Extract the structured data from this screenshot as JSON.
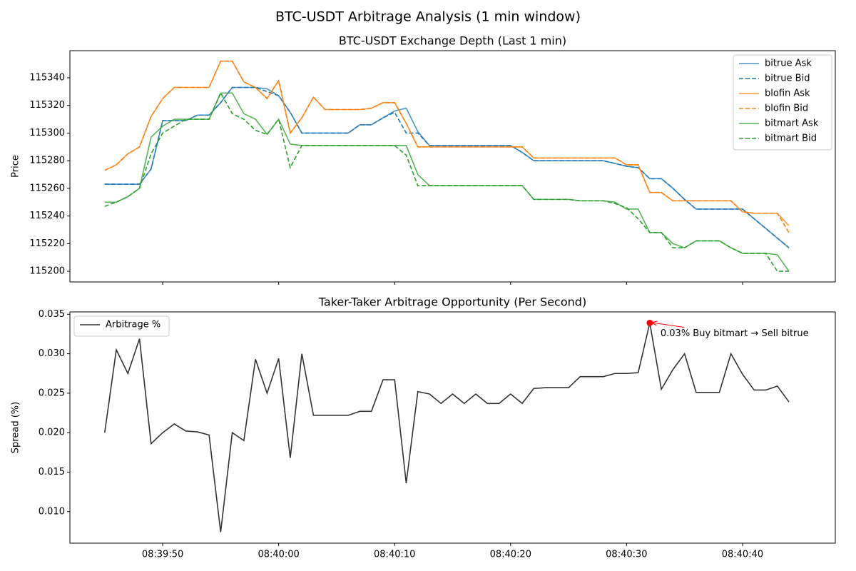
{
  "title": "BTC-USDT Arbitrage Analysis (1 min window)",
  "chart_data": [
    {
      "type": "line",
      "title": "BTC-USDT Exchange Depth (Last 1 min)",
      "y_label": "Price",
      "x": [
        "08:39:45",
        "08:39:46",
        "08:39:47",
        "08:39:48",
        "08:39:49",
        "08:39:50",
        "08:39:51",
        "08:39:52",
        "08:39:53",
        "08:39:54",
        "08:39:55",
        "08:39:56",
        "08:39:57",
        "08:39:58",
        "08:39:59",
        "08:40:00",
        "08:40:01",
        "08:40:02",
        "08:40:03",
        "08:40:04",
        "08:40:05",
        "08:40:06",
        "08:40:07",
        "08:40:08",
        "08:40:09",
        "08:40:10",
        "08:40:11",
        "08:40:12",
        "08:40:13",
        "08:40:14",
        "08:40:15",
        "08:40:16",
        "08:40:17",
        "08:40:18",
        "08:40:19",
        "08:40:20",
        "08:40:21",
        "08:40:22",
        "08:40:23",
        "08:40:24",
        "08:40:25",
        "08:40:26",
        "08:40:27",
        "08:40:28",
        "08:40:29",
        "08:40:30",
        "08:40:31",
        "08:40:32",
        "08:40:33",
        "08:40:34",
        "08:40:35",
        "08:40:36",
        "08:40:37",
        "08:40:38",
        "08:40:39",
        "08:40:40",
        "08:40:41",
        "08:40:42",
        "08:40:43",
        "08:40:44"
      ],
      "xlim": [
        "08:39:42",
        "08:40:48"
      ],
      "xticks": [
        "08:39:50",
        "08:40:00",
        "08:40:10",
        "08:40:20",
        "08:40:30",
        "08:40:40"
      ],
      "xtick_labels": false,
      "ylim": [
        115192.3,
        115359.6
      ],
      "yticks": [
        115200,
        115220,
        115240,
        115260,
        115280,
        115300,
        115320,
        115340
      ],
      "legend": "upper right",
      "series": [
        {
          "name": "bitrue Ask",
          "color": "#1f77b4",
          "linestyle": "solid",
          "values": [
            115263,
            115263,
            115263,
            115263,
            115274,
            115309,
            115309,
            115309,
            115313,
            115313,
            115322,
            115333,
            115333,
            115333,
            115332,
            115327,
            115315,
            115300,
            115300,
            115300,
            115300,
            115300,
            115306,
            115306,
            115311,
            115316,
            115318,
            115301,
            115291,
            115291,
            115291,
            115291,
            115291,
            115291,
            115291,
            115291,
            115286,
            115280,
            115280,
            115280,
            115280,
            115280,
            115280,
            115280,
            115278,
            115276,
            115275,
            115267,
            115267,
            115260,
            115252,
            115245,
            115245,
            115245,
            115245,
            115245,
            115238,
            115231,
            115224,
            115217
          ]
        },
        {
          "name": "bitrue Bid",
          "color": "#1f77b4",
          "linestyle": "dashed",
          "values": [
            115263,
            115263,
            115263,
            115263,
            115274,
            115309,
            115309,
            115309,
            115313,
            115313,
            115322,
            115333,
            115333,
            115333,
            115330,
            115327,
            115315,
            115300,
            115300,
            115300,
            115300,
            115300,
            115306,
            115306,
            115311,
            115315,
            115300,
            115300,
            115291,
            115291,
            115291,
            115291,
            115291,
            115291,
            115291,
            115291,
            115286,
            115280,
            115280,
            115280,
            115280,
            115280,
            115280,
            115280,
            115278,
            115276,
            115275,
            115267,
            115267,
            115260,
            115252,
            115245,
            115245,
            115245,
            115245,
            115245,
            115238,
            115231,
            115224,
            115217
          ]
        },
        {
          "name": "blofin Ask",
          "color": "#ff7f0e",
          "linestyle": "solid",
          "values": [
            115273,
            115277,
            115285,
            115290,
            115312,
            115325,
            115333,
            115333,
            115333,
            115333,
            115352,
            115352,
            115337,
            115333,
            115325,
            115338,
            115300,
            115311,
            115326,
            115317,
            115317,
            115317,
            115317,
            115318,
            115322,
            115322,
            115307,
            115290,
            115290,
            115290,
            115290,
            115290,
            115290,
            115290,
            115290,
            115290,
            115290,
            115282,
            115282,
            115282,
            115282,
            115282,
            115282,
            115282,
            115282,
            115277,
            115277,
            115257,
            115257,
            115251,
            115251,
            115251,
            115251,
            115251,
            115251,
            115243,
            115242,
            115242,
            115242,
            115233
          ]
        },
        {
          "name": "blofin Bid",
          "color": "#ff7f0e",
          "linestyle": "dashed",
          "values": [
            115273,
            115277,
            115285,
            115290,
            115312,
            115325,
            115333,
            115333,
            115333,
            115333,
            115352,
            115352,
            115337,
            115333,
            115325,
            115338,
            115300,
            115311,
            115326,
            115317,
            115317,
            115317,
            115317,
            115318,
            115322,
            115322,
            115307,
            115290,
            115290,
            115290,
            115290,
            115290,
            115290,
            115290,
            115290,
            115290,
            115290,
            115282,
            115282,
            115282,
            115282,
            115282,
            115282,
            115282,
            115282,
            115277,
            115277,
            115257,
            115257,
            115251,
            115251,
            115251,
            115251,
            115251,
            115251,
            115243,
            115242,
            115242,
            115242,
            115228
          ]
        },
        {
          "name": "bitmart Ask",
          "color": "#2ca02c",
          "linestyle": "solid",
          "values": [
            115250,
            115250,
            115254,
            115260,
            115297,
            115305,
            115310,
            115310,
            115310,
            115310,
            115329,
            115329,
            115314,
            115310,
            115299,
            115310,
            115292,
            115291,
            115291,
            115291,
            115291,
            115291,
            115291,
            115291,
            115291,
            115291,
            115291,
            115270,
            115262,
            115262,
            115262,
            115262,
            115262,
            115262,
            115262,
            115262,
            115262,
            115252,
            115252,
            115252,
            115252,
            115251,
            115251,
            115251,
            115250,
            115245,
            115245,
            115228,
            115228,
            115220,
            115217,
            115222,
            115222,
            115222,
            115217,
            115213,
            115213,
            115213,
            115212,
            115200
          ]
        },
        {
          "name": "bitmart Bid",
          "color": "#2ca02c",
          "linestyle": "dashed",
          "values": [
            115247,
            115250,
            115254,
            115260,
            115285,
            115300,
            115305,
            115310,
            115310,
            115310,
            115329,
            115314,
            115310,
            115302,
            115299,
            115310,
            115275,
            115291,
            115291,
            115291,
            115291,
            115291,
            115291,
            115291,
            115291,
            115291,
            115284,
            115262,
            115262,
            115262,
            115262,
            115262,
            115262,
            115262,
            115262,
            115262,
            115262,
            115252,
            115252,
            115252,
            115252,
            115251,
            115251,
            115251,
            115249,
            115246,
            115238,
            115228,
            115228,
            115217,
            115217,
            115222,
            115222,
            115222,
            115217,
            115213,
            115213,
            115213,
            115200,
            115200
          ]
        }
      ]
    },
    {
      "type": "line",
      "title": "Taker-Taker Arbitrage Opportunity (Per Second)",
      "y_label": "Spread (%)",
      "x": [
        "08:39:45",
        "08:39:46",
        "08:39:47",
        "08:39:48",
        "08:39:49",
        "08:39:50",
        "08:39:51",
        "08:39:52",
        "08:39:53",
        "08:39:54",
        "08:39:55",
        "08:39:56",
        "08:39:57",
        "08:39:58",
        "08:39:59",
        "08:40:00",
        "08:40:01",
        "08:40:02",
        "08:40:03",
        "08:40:04",
        "08:40:05",
        "08:40:06",
        "08:40:07",
        "08:40:08",
        "08:40:09",
        "08:40:10",
        "08:40:11",
        "08:40:12",
        "08:40:13",
        "08:40:14",
        "08:40:15",
        "08:40:16",
        "08:40:17",
        "08:40:18",
        "08:40:19",
        "08:40:20",
        "08:40:21",
        "08:40:22",
        "08:40:23",
        "08:40:24",
        "08:40:25",
        "08:40:26",
        "08:40:27",
        "08:40:28",
        "08:40:29",
        "08:40:30",
        "08:40:31",
        "08:40:32",
        "08:40:33",
        "08:40:34",
        "08:40:35",
        "08:40:36",
        "08:40:37",
        "08:40:38",
        "08:40:39",
        "08:40:40",
        "08:40:41",
        "08:40:42",
        "08:40:43",
        "08:40:44"
      ],
      "xlim": [
        "08:39:42",
        "08:40:48"
      ],
      "xticks": [
        "08:39:50",
        "08:40:00",
        "08:40:10",
        "08:40:20",
        "08:40:30",
        "08:40:40"
      ],
      "xtick_labels": true,
      "ylim": [
        0.006,
        0.0353
      ],
      "yticks": [
        {
          "value": 0.01,
          "label": "0.010"
        },
        0.015,
        {
          "value": 0.02,
          "label": "0.020"
        },
        0.025,
        {
          "value": 0.03,
          "label": "0.030"
        },
        0.035
      ],
      "legend": "upper left",
      "series": [
        {
          "name": "Arbitrage %",
          "color": "#000000",
          "linestyle": "solid",
          "values": [
            0.02,
            0.0305,
            0.0275,
            0.0319,
            0.0186,
            0.02,
            0.0211,
            0.0202,
            0.0201,
            0.0197,
            0.0074,
            0.02,
            0.019,
            0.0293,
            0.025,
            0.0294,
            0.0168,
            0.03,
            0.0222,
            0.0222,
            0.0222,
            0.0222,
            0.0227,
            0.0227,
            0.0267,
            0.0267,
            0.0136,
            0.0252,
            0.0249,
            0.0237,
            0.0249,
            0.0237,
            0.0249,
            0.0237,
            0.0237,
            0.0249,
            0.0237,
            0.0256,
            0.0257,
            0.0257,
            0.0257,
            0.0271,
            0.0271,
            0.0271,
            0.0275,
            0.0275,
            0.0276,
            0.0339,
            0.0255,
            0.028,
            0.03,
            0.0251,
            0.0251,
            0.0251,
            0.03,
            0.0274,
            0.0254,
            0.0254,
            0.0259,
            0.0239
          ]
        }
      ],
      "annotation": {
        "text": "0.03% Buy bitmart → Sell bitrue",
        "x": "08:40:32",
        "y": 0.0339,
        "color": "#ff0000"
      }
    }
  ]
}
